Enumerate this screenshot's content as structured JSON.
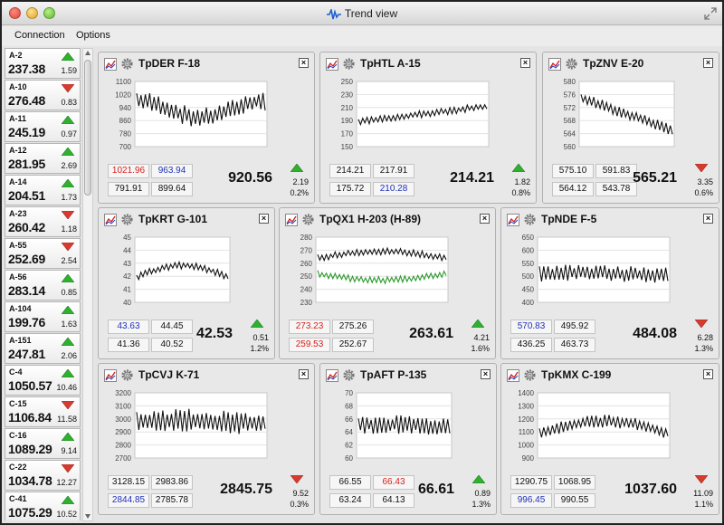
{
  "window": {
    "title": "Trend view"
  },
  "menu": [
    "Connection",
    "Options"
  ],
  "colors": {
    "up": "#2fb02f",
    "down": "#d83a2f",
    "red_text": "#d8201a",
    "blue_text": "#2030b8",
    "line": "#111111",
    "line2": "#2a9a2a"
  },
  "sidebar": [
    {
      "name": "A-2",
      "price": "237.38",
      "change": "1.59",
      "dir": "up"
    },
    {
      "name": "A-10",
      "price": "276.48",
      "change": "0.83",
      "dir": "down"
    },
    {
      "name": "A-11",
      "price": "245.19",
      "change": "0.97",
      "dir": "up"
    },
    {
      "name": "A-12",
      "price": "281.95",
      "change": "2.69",
      "dir": "up"
    },
    {
      "name": "A-14",
      "price": "204.51",
      "change": "1.73",
      "dir": "up"
    },
    {
      "name": "A-23",
      "price": "260.42",
      "change": "1.18",
      "dir": "down"
    },
    {
      "name": "A-55",
      "price": "252.69",
      "change": "2.54",
      "dir": "down"
    },
    {
      "name": "A-56",
      "price": "283.14",
      "change": "0.85",
      "dir": "up"
    },
    {
      "name": "A-104",
      "price": "199.76",
      "change": "1.63",
      "dir": "up"
    },
    {
      "name": "A-151",
      "price": "247.81",
      "change": "2.06",
      "dir": "up"
    },
    {
      "name": "C-4",
      "price": "1050.57",
      "change": "10.46",
      "dir": "up"
    },
    {
      "name": "C-15",
      "price": "1106.84",
      "change": "11.58",
      "dir": "down"
    },
    {
      "name": "C-16",
      "price": "1089.29",
      "change": "9.14",
      "dir": "up"
    },
    {
      "name": "C-22",
      "price": "1034.78",
      "change": "12.27",
      "dir": "down"
    },
    {
      "name": "C-41",
      "price": "1075.29",
      "change": "10.52",
      "dir": "up"
    }
  ],
  "panels": [
    {
      "title": "TpDER  F-18",
      "yticks": [
        "1100",
        "1020",
        "940",
        "860",
        "780",
        "700"
      ],
      "ymin": 700,
      "ymax": 1100,
      "boxes": [
        {
          "v": "1021.96",
          "c": "red"
        },
        {
          "v": "963.94",
          "c": "blue"
        },
        {
          "v": "791.91",
          "c": ""
        },
        {
          "v": "899.64",
          "c": ""
        }
      ],
      "price": "920.56",
      "change": "2.19",
      "pct": "0.2%",
      "dir": "up",
      "seed": 1,
      "shape": "dip",
      "base": 930,
      "amp": 85,
      "noise": 55
    },
    {
      "title": "TpHTL  A-15",
      "yticks": [
        "250",
        "230",
        "210",
        "190",
        "170",
        "150"
      ],
      "ymin": 150,
      "ymax": 250,
      "boxes": [
        {
          "v": "214.21",
          "c": ""
        },
        {
          "v": "217.91",
          "c": ""
        },
        {
          "v": "175.72",
          "c": ""
        },
        {
          "v": "210.28",
          "c": "blue"
        }
      ],
      "price": "214.21",
      "change": "1.82",
      "pct": "0.8%",
      "dir": "up",
      "seed": 2,
      "shape": "rise",
      "base": 200,
      "amp": 12,
      "noise": 5
    },
    {
      "title": "TpZNV  E-20",
      "yticks": [
        "580",
        "576",
        "572",
        "568",
        "564",
        "560"
      ],
      "ymin": 560,
      "ymax": 580,
      "boxes": [
        {
          "v": "575.10",
          "c": ""
        },
        {
          "v": "591.83",
          "c": ""
        },
        {
          "v": "564.12",
          "c": ""
        },
        {
          "v": "543.78",
          "c": ""
        }
      ],
      "price": "565.21",
      "change": "3.35",
      "pct": "0.6%",
      "dir": "down",
      "seed": 3,
      "shape": "fall",
      "base": 570,
      "amp": 5,
      "noise": 1.5
    },
    {
      "title": "TpKRT  G-101",
      "yticks": [
        "45",
        "44",
        "43",
        "42",
        "41",
        "40"
      ],
      "ymin": 40,
      "ymax": 45,
      "boxes": [
        {
          "v": "43.63",
          "c": "blue"
        },
        {
          "v": "44.45",
          "c": ""
        },
        {
          "v": "41.36",
          "c": ""
        },
        {
          "v": "40.52",
          "c": ""
        }
      ],
      "price": "42.53",
      "change": "0.51",
      "pct": "1.2%",
      "dir": "up",
      "seed": 4,
      "shape": "hump",
      "base": 42.3,
      "amp": 0.9,
      "noise": 0.25
    },
    {
      "title": "TpQX1  H-203 (H-89)",
      "yticks": [
        "280",
        "270",
        "260",
        "250",
        "240",
        "230"
      ],
      "ymin": 230,
      "ymax": 280,
      "boxes": [
        {
          "v": "273.23",
          "c": "red"
        },
        {
          "v": "275.26",
          "c": ""
        },
        {
          "v": "259.53",
          "c": "red"
        },
        {
          "v": "252.67",
          "c": ""
        }
      ],
      "price": "263.61",
      "change": "4.21",
      "pct": "1.6%",
      "dir": "up",
      "seed": 5,
      "shape": "hump",
      "base": 266,
      "amp": 5,
      "noise": 2.5,
      "second": true
    },
    {
      "title": "TpNDE  F-5",
      "yticks": [
        "650",
        "600",
        "550",
        "500",
        "450",
        "400"
      ],
      "ymin": 400,
      "ymax": 650,
      "boxes": [
        {
          "v": "570.83",
          "c": "blue"
        },
        {
          "v": "495.92",
          "c": ""
        },
        {
          "v": "436.25",
          "c": ""
        },
        {
          "v": "463.73",
          "c": ""
        }
      ],
      "price": "484.08",
      "change": "6.28",
      "pct": "1.3%",
      "dir": "down",
      "seed": 6,
      "shape": "flat",
      "base": 510,
      "amp": 15,
      "noise": 28
    },
    {
      "title": "TpCVJ  K-71",
      "yticks": [
        "3200",
        "3100",
        "3000",
        "2900",
        "2800",
        "2700"
      ],
      "ymin": 2700,
      "ymax": 3200,
      "boxes": [
        {
          "v": "3128.15",
          "c": ""
        },
        {
          "v": "2983.86",
          "c": ""
        },
        {
          "v": "2844.85",
          "c": "blue"
        },
        {
          "v": "2785.78",
          "c": ""
        }
      ],
      "price": "2845.75",
      "change": "9.52",
      "pct": "0.3%",
      "dir": "down",
      "seed": 7,
      "shape": "flat",
      "base": 2980,
      "amp": 40,
      "noise": 80
    },
    {
      "title": "TpAFT  P-135",
      "yticks": [
        "70",
        "68",
        "66",
        "64",
        "62",
        "60"
      ],
      "ymin": 60,
      "ymax": 70,
      "boxes": [
        {
          "v": "66.55",
          "c": ""
        },
        {
          "v": "66.43",
          "c": "red"
        },
        {
          "v": "63.24",
          "c": ""
        },
        {
          "v": "64.13",
          "c": ""
        }
      ],
      "price": "66.61",
      "change": "0.89",
      "pct": "1.3%",
      "dir": "up",
      "seed": 8,
      "shape": "flat",
      "base": 65,
      "amp": 0.5,
      "noise": 1.3
    },
    {
      "title": "TpKMX  C-199",
      "yticks": [
        "1400",
        "1300",
        "1200",
        "1100",
        "1000",
        "900"
      ],
      "ymin": 900,
      "ymax": 1400,
      "boxes": [
        {
          "v": "1290.75",
          "c": ""
        },
        {
          "v": "1068.95",
          "c": ""
        },
        {
          "v": "996.45",
          "c": "blue"
        },
        {
          "v": "990.55",
          "c": ""
        }
      ],
      "price": "1037.60",
      "change": "11.09",
      "pct": "1.1%",
      "dir": "down",
      "seed": 9,
      "shape": "hump",
      "base": 1130,
      "amp": 90,
      "noise": 45
    }
  ]
}
